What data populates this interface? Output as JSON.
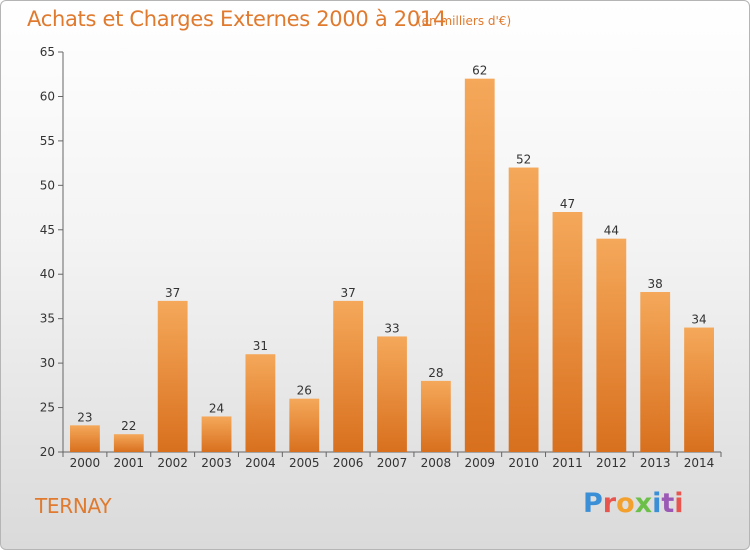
{
  "title": "Achats et Charges Externes 2000 à 2014",
  "subtitle": "(en milliers d'€)",
  "location": "TERNAY",
  "logo": {
    "text": "Proxiti",
    "colors": [
      "#3a8fd6",
      "#e8554e",
      "#f2a12e",
      "#6cc04a",
      "#3a8fd6",
      "#9b59b6",
      "#e8554e"
    ]
  },
  "colors": {
    "bar_top": "#f5a85a",
    "bar_bottom": "#d8701e",
    "accent": "#e07a2e"
  },
  "chart_data": {
    "type": "bar",
    "categories": [
      "2000",
      "2001",
      "2002",
      "2003",
      "2004",
      "2005",
      "2006",
      "2007",
      "2008",
      "2009",
      "2010",
      "2011",
      "2012",
      "2013",
      "2014"
    ],
    "values": [
      23,
      22,
      37,
      24,
      31,
      26,
      37,
      33,
      28,
      62,
      52,
      47,
      44,
      38,
      34
    ],
    "title": "Achats et Charges Externes 2000 à 2014",
    "xlabel": "",
    "ylabel": "",
    "ylim": [
      20,
      65
    ],
    "yticks": [
      20,
      25,
      30,
      35,
      40,
      45,
      50,
      55,
      60,
      65
    ],
    "grid": false,
    "data_labels": true
  }
}
